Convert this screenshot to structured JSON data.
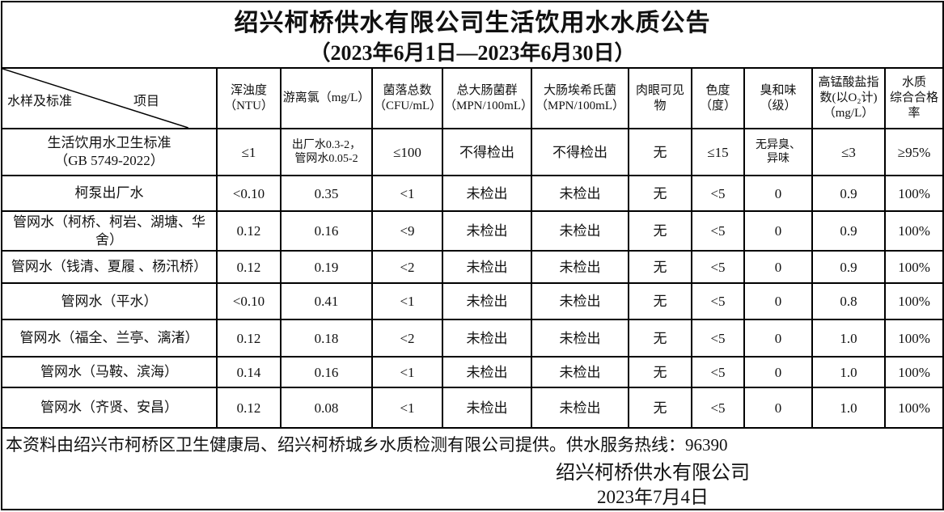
{
  "title": "绍兴柯桥供水有限公司生活饮用水水质公告",
  "subtitle": "（2023年6月1日—2023年6月30日）",
  "corner": {
    "sample_label": "水样及标准",
    "item_label": "项目"
  },
  "columns": [
    "浑浊度\n（NTU）",
    "游离氯（mg/L）",
    "菌落总数\n（CFU/mL）",
    "总大肠菌群\n（MPN/100mL）",
    "大肠埃希氏菌\n（MPN/100mL）",
    "肉眼可见物",
    "色度\n（度）",
    "臭和味\n（级）",
    "高锰酸盐指\n数(以O₂计)\n（mg/L）",
    "水质\n综合合格率"
  ],
  "rows": [
    {
      "label": "生活饮用水卫生标准\n（GB 5749-2022）",
      "values": [
        "≤1",
        "出厂水0.3-2，\n管网水0.05-2",
        "≤100",
        "不得检出",
        "不得检出",
        "无",
        "≤15",
        "无异臭、\n异味",
        "≤3",
        "≥95%"
      ]
    },
    {
      "label": "柯泵出厂水",
      "values": [
        "<0.10",
        "0.35",
        "<1",
        "未检出",
        "未检出",
        "无",
        "<5",
        "0",
        "0.9",
        "100%"
      ]
    },
    {
      "label": "管网水（柯桥、柯岩、湖塘、华舍）",
      "values": [
        "0.12",
        "0.16",
        "<9",
        "未检出",
        "未检出",
        "无",
        "<5",
        "0",
        "0.9",
        "100%"
      ]
    },
    {
      "label": "管网水（钱清、夏履 、杨汛桥）",
      "values": [
        "0.12",
        "0.19",
        "<2",
        "未检出",
        "未检出",
        "无",
        "<5",
        "0",
        "0.9",
        "100%"
      ]
    },
    {
      "label": "管网水（平水）",
      "values": [
        "<0.10",
        "0.41",
        "<1",
        "未检出",
        "未检出",
        "无",
        "<5",
        "0",
        "0.8",
        "100%"
      ]
    },
    {
      "label": "管网水（福全、兰亭、漓渚）",
      "values": [
        "0.12",
        "0.18",
        "<2",
        "未检出",
        "未检出",
        "无",
        "<5",
        "0",
        "1.0",
        "100%"
      ]
    },
    {
      "label": "管网水（马鞍、滨海）",
      "values": [
        "0.14",
        "0.16",
        "<1",
        "未检出",
        "未检出",
        "无",
        "<5",
        "0",
        "1.0",
        "100%"
      ]
    },
    {
      "label": "管网水（齐贤、安昌）",
      "values": [
        "0.12",
        "0.08",
        "<1",
        "未检出",
        "未检出",
        "无",
        "<5",
        "0",
        "1.0",
        "100%"
      ]
    }
  ],
  "footer": {
    "note": "本资料由绍兴市柯桥区卫生健康局、绍兴柯桥城乡水质检测有限公司提供。供水服务热线：96390",
    "company": "绍兴柯桥供水有限公司",
    "date": "2023年7月4日"
  },
  "colors": {
    "border": "#000000",
    "text": "#111111",
    "background": "#ffffff"
  }
}
